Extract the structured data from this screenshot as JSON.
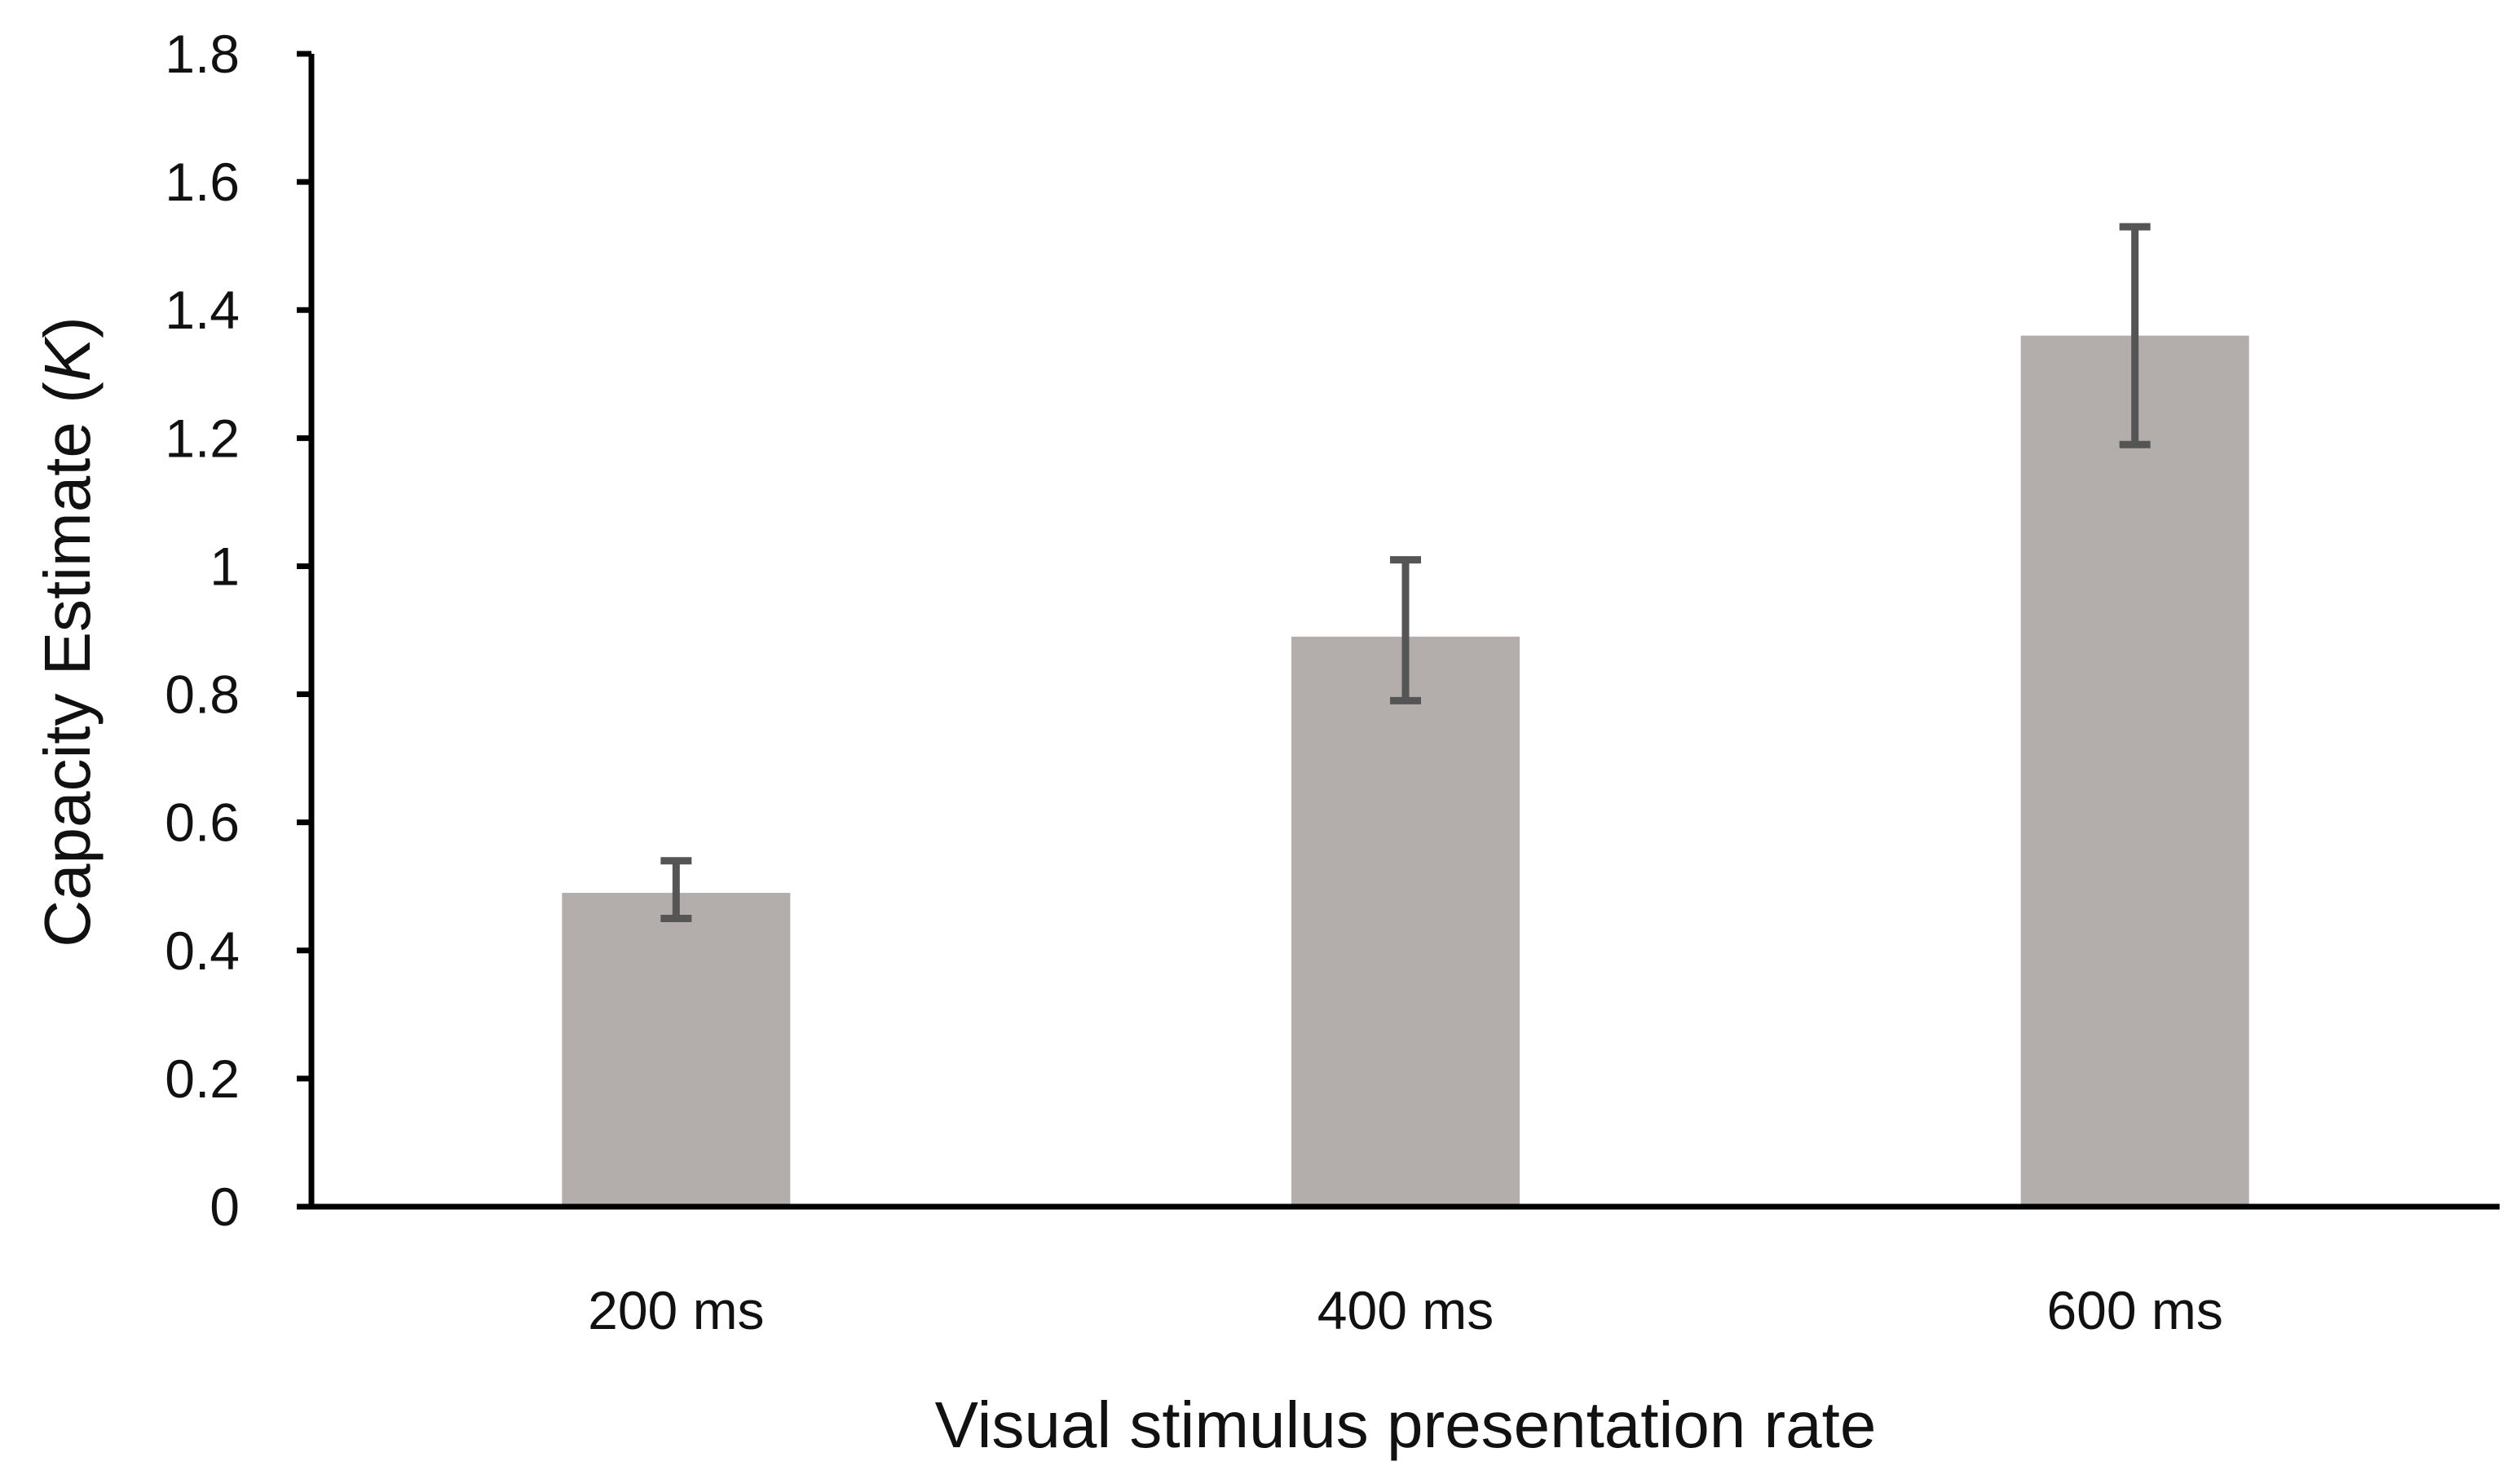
{
  "chart_data": {
    "type": "bar",
    "title": "",
    "categories": [
      "200 ms",
      "400 ms",
      "600 ms"
    ],
    "values": [
      0.49,
      0.89,
      1.36
    ],
    "error_low": [
      0.45,
      0.79,
      1.19
    ],
    "error_high": [
      0.54,
      1.01,
      1.53
    ],
    "ylim": [
      0,
      1.8
    ],
    "yticks": [
      0,
      0.2,
      0.4,
      0.6,
      0.8,
      1,
      1.2,
      1.4,
      1.6,
      1.8
    ],
    "ytick_labels": [
      "0",
      "0.2",
      "0.4",
      "0.6",
      "0.8",
      "1",
      "1.2",
      "1.4",
      "1.6",
      "1.8"
    ],
    "xlabel": "Visual stimulus presentation rate",
    "ylabel_main": "Capacity Estimate (",
    "ylabel_var": "K",
    "ylabel_end": ")",
    "grid": false,
    "bar_color": "#b3aeab",
    "error_color": "#555555"
  }
}
